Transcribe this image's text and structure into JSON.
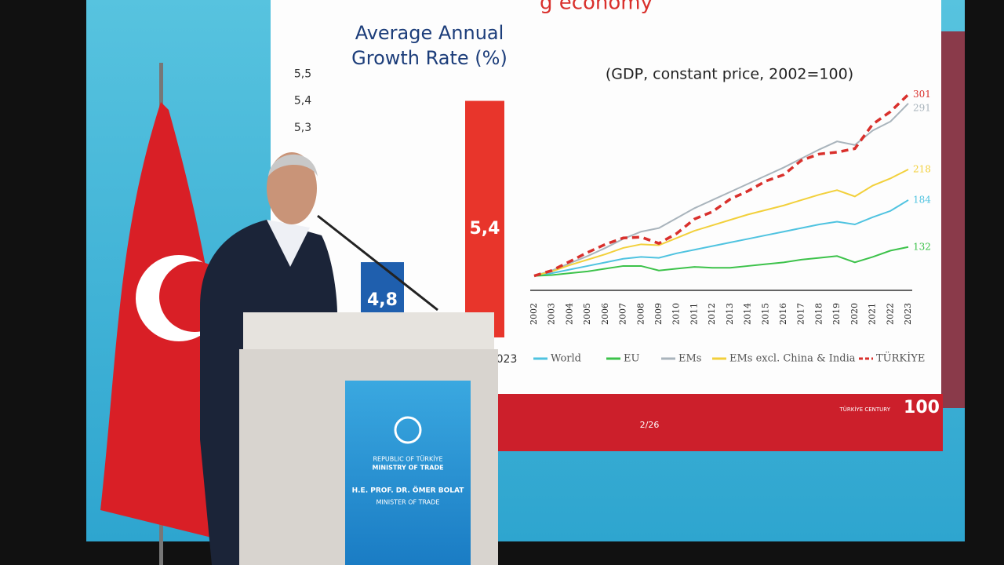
{
  "slide": {
    "heading": "g economy",
    "page": "2/26",
    "logo_text": "TÜRKİYE CENTURY",
    "logo_number": "100"
  },
  "chart_data": [
    {
      "type": "bar",
      "title": "Average Annual Growth Rate (%)",
      "categories": [
        null,
        "023"
      ],
      "values": [
        4.8,
        5.4
      ],
      "value_labels": [
        "4,8",
        "5,4"
      ],
      "colors": [
        "#1f5fae",
        "#e8352b"
      ],
      "ylim": [
        4.52,
        5.6
      ],
      "yticks": [
        {
          "value": 5.3,
          "label": "5,3"
        },
        {
          "value": 5.4,
          "label": "5,4"
        },
        {
          "value": 5.5,
          "label": "5,5"
        }
      ]
    },
    {
      "type": "line",
      "subtitle": "(GDP, constant price, 2002=100)",
      "categories": [
        "2002",
        "2003",
        "2004",
        "2005",
        "2006",
        "2007",
        "2008",
        "2009",
        "2010",
        "2011",
        "2012",
        "2013",
        "2014",
        "2015",
        "2016",
        "2017",
        "2018",
        "2019",
        "2020",
        "2021",
        "2022",
        "2023"
      ],
      "ylim": [
        84,
        310
      ],
      "series": [
        {
          "name": "World",
          "color": "#4fc3e0",
          "values": [
            100,
            103,
            107,
            111,
            115,
            119,
            121,
            120,
            125,
            129,
            133,
            137,
            141,
            145,
            149,
            153,
            157,
            160,
            157,
            165,
            172,
            184
          ]
        },
        {
          "name": "EU",
          "color": "#3cc24a",
          "values": [
            100,
            101,
            103,
            105,
            108,
            111,
            111,
            106,
            108,
            110,
            109,
            109,
            111,
            113,
            115,
            118,
            120,
            122,
            115,
            121,
            128,
            132
          ]
        },
        {
          "name": "EMs",
          "color": "#a9b4bc",
          "values": [
            100,
            106,
            114,
            122,
            131,
            141,
            149,
            153,
            164,
            175,
            184,
            193,
            202,
            211,
            220,
            230,
            240,
            249,
            245,
            261,
            271,
            291
          ]
        },
        {
          "name": "EMs excl. China & India",
          "color": "#f2d03b",
          "values": [
            100,
            105,
            112,
            118,
            124,
            131,
            135,
            134,
            142,
            150,
            156,
            162,
            168,
            173,
            178,
            184,
            190,
            195,
            188,
            200,
            208,
            218
          ]
        },
        {
          "name": "TÜRKİYE",
          "color": "#d9302c",
          "dashed": true,
          "values": [
            100,
            106,
            116,
            126,
            135,
            142,
            143,
            136,
            147,
            163,
            171,
            185,
            194,
            205,
            212,
            228,
            235,
            237,
            241,
            268,
            282,
            301
          ]
        }
      ]
    }
  ],
  "podium": {
    "country": "REPUBLIC OF TÜRKİYE",
    "ministry": "MINISTRY OF TRADE",
    "speaker": "H.E. PROF. DR. ÖMER BOLAT",
    "role": "MINISTER OF TRADE"
  }
}
